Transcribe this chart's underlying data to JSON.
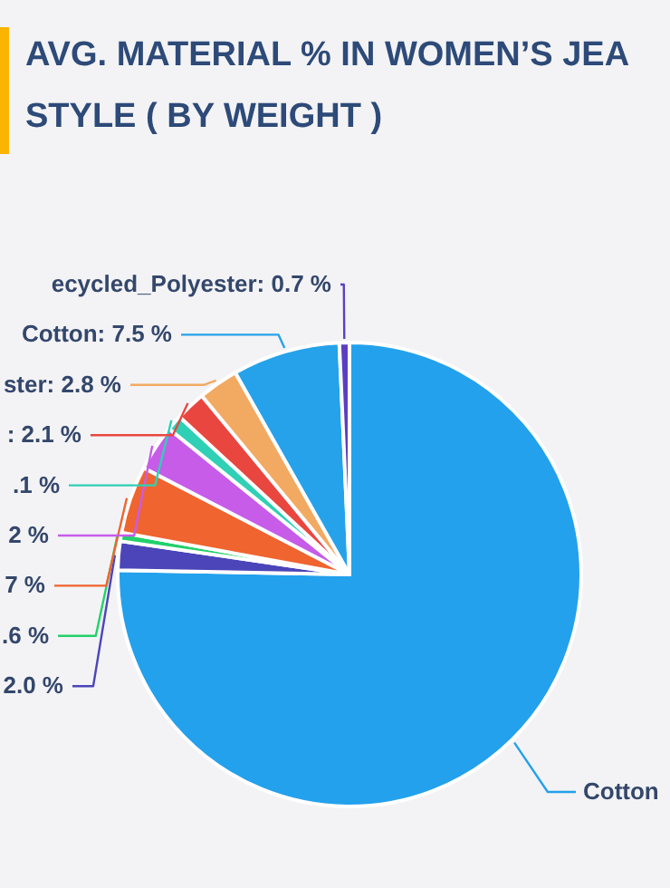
{
  "chart_data": {
    "type": "pie",
    "title": "AVG. MATERIAL % IN WOMEN’S JEA\nSTYLE ( BY WEIGHT )",
    "categories": [
      null,
      null,
      null,
      null,
      null,
      null,
      null,
      null,
      null,
      null
    ],
    "values": [
      75.3,
      2.0,
      0.6,
      4.7,
      3.2,
      1.1,
      2.1,
      2.8,
      7.5,
      0.7
    ],
    "colors": [
      "#23a1ec",
      "#4b45b9",
      "#22d16b",
      "#f0642f",
      "#c75ce9",
      "#2fd0b5",
      "#ea4640",
      "#f2aa62",
      "#26a2ea",
      "#5b3fc2"
    ],
    "value_labels": [
      "Cotton",
      "2.0 %",
      ".6 %",
      null,
      null,
      null,
      ": 2.1 %",
      "ster: 2.8 %",
      "Cotton: 7.5 %",
      "ecycled_Polyester: 0.7 %"
    ],
    "annotations": [
      "7 %",
      "2 %",
      ".1 %"
    ]
  }
}
